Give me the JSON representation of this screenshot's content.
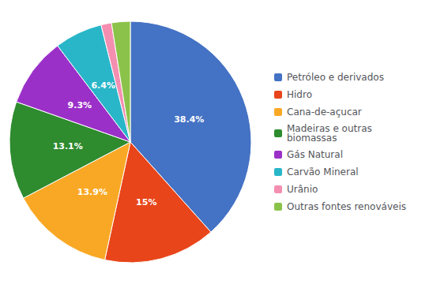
{
  "chart_data": {
    "type": "pie",
    "categories": [
      "Petróleo e derivados",
      "Hidro",
      "Cana-de-açucar",
      "Madeiras e outras\nbiomassas",
      "Gás Natural",
      "Carvão Mineral",
      "Urânio",
      "Outras fontes renováveis"
    ],
    "values": [
      38.4,
      15.0,
      13.9,
      13.1,
      9.3,
      6.4,
      1.4,
      2.5
    ],
    "value_labels": [
      "38.4%",
      "15%",
      "13.9%",
      "13.1%",
      "9.3%",
      "6.4%",
      null,
      null
    ],
    "data_labels": true,
    "colors": [
      "#4472C4",
      "#E8451A",
      "#F9A825",
      "#2E8B2E",
      "#9B30C8",
      "#29B6C8",
      "#F48FB1",
      "#8BC34A"
    ],
    "legend": "right"
  }
}
